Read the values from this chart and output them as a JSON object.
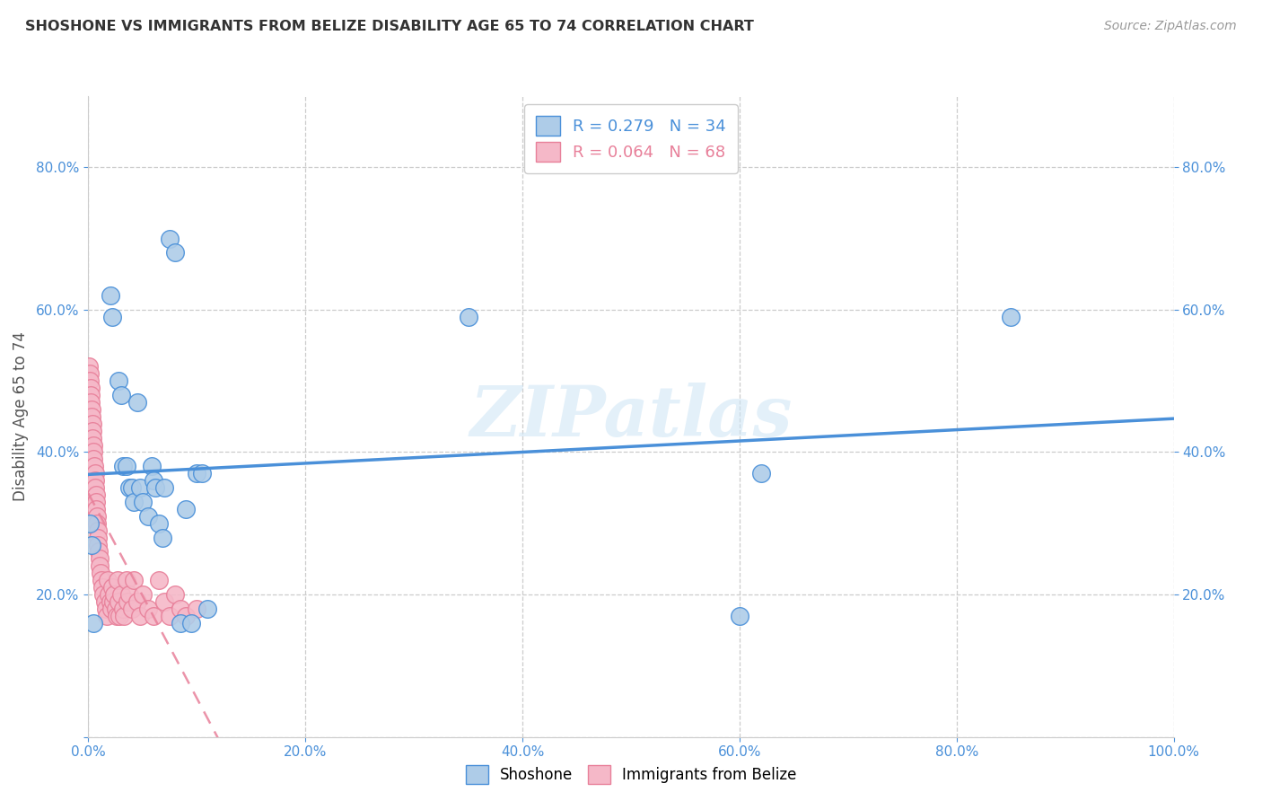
{
  "title": "SHOSHONE VS IMMIGRANTS FROM BELIZE DISABILITY AGE 65 TO 74 CORRELATION CHART",
  "source": "Source: ZipAtlas.com",
  "ylabel": "Disability Age 65 to 74",
  "watermark": "ZIPatlas",
  "shoshone_R": 0.279,
  "shoshone_N": 34,
  "belize_R": 0.064,
  "belize_N": 68,
  "shoshone_color": "#aecce8",
  "belize_color": "#f5b8c8",
  "shoshone_line_color": "#4a90d9",
  "belize_line_color": "#e8809a",
  "shoshone_x": [
    0.001,
    0.003,
    0.005,
    0.02,
    0.022,
    0.028,
    0.03,
    0.032,
    0.035,
    0.038,
    0.04,
    0.042,
    0.045,
    0.048,
    0.05,
    0.055,
    0.058,
    0.06,
    0.062,
    0.065,
    0.068,
    0.07,
    0.075,
    0.08,
    0.085,
    0.09,
    0.095,
    0.1,
    0.105,
    0.11,
    0.35,
    0.6,
    0.62,
    0.85
  ],
  "shoshone_y": [
    0.3,
    0.27,
    0.16,
    0.62,
    0.59,
    0.5,
    0.48,
    0.38,
    0.38,
    0.35,
    0.35,
    0.33,
    0.47,
    0.35,
    0.33,
    0.31,
    0.38,
    0.36,
    0.35,
    0.3,
    0.28,
    0.35,
    0.7,
    0.68,
    0.16,
    0.32,
    0.16,
    0.37,
    0.37,
    0.18,
    0.59,
    0.17,
    0.37,
    0.59
  ],
  "belize_x": [
    0.0005,
    0.001,
    0.0015,
    0.002,
    0.002,
    0.0025,
    0.003,
    0.003,
    0.0035,
    0.004,
    0.004,
    0.0045,
    0.005,
    0.005,
    0.0055,
    0.006,
    0.006,
    0.0065,
    0.007,
    0.007,
    0.0075,
    0.008,
    0.008,
    0.0085,
    0.009,
    0.009,
    0.0095,
    0.01,
    0.01,
    0.011,
    0.012,
    0.013,
    0.014,
    0.015,
    0.016,
    0.017,
    0.018,
    0.019,
    0.02,
    0.021,
    0.022,
    0.023,
    0.024,
    0.025,
    0.026,
    0.027,
    0.028,
    0.029,
    0.03,
    0.032,
    0.033,
    0.035,
    0.036,
    0.038,
    0.04,
    0.042,
    0.045,
    0.048,
    0.05,
    0.055,
    0.06,
    0.065,
    0.07,
    0.075,
    0.08,
    0.085,
    0.09,
    0.1
  ],
  "belize_y": [
    0.52,
    0.51,
    0.5,
    0.49,
    0.48,
    0.47,
    0.46,
    0.45,
    0.44,
    0.43,
    0.42,
    0.41,
    0.4,
    0.39,
    0.38,
    0.37,
    0.36,
    0.35,
    0.34,
    0.33,
    0.32,
    0.31,
    0.3,
    0.29,
    0.28,
    0.27,
    0.26,
    0.25,
    0.24,
    0.23,
    0.22,
    0.21,
    0.2,
    0.19,
    0.18,
    0.17,
    0.22,
    0.2,
    0.19,
    0.18,
    0.21,
    0.19,
    0.2,
    0.18,
    0.17,
    0.22,
    0.19,
    0.17,
    0.2,
    0.18,
    0.17,
    0.22,
    0.19,
    0.2,
    0.18,
    0.22,
    0.19,
    0.17,
    0.2,
    0.18,
    0.17,
    0.22,
    0.19,
    0.17,
    0.2,
    0.18,
    0.17,
    0.18
  ],
  "xlim": [
    0.0,
    1.0
  ],
  "ylim": [
    0.0,
    0.9
  ],
  "xtick_vals": [
    0.0,
    0.2,
    0.4,
    0.6,
    0.8,
    1.0
  ],
  "xtick_labels": [
    "0.0%",
    "20.0%",
    "40.0%",
    "60.0%",
    "80.0%",
    "100.0%"
  ],
  "ytick_vals": [
    0.0,
    0.2,
    0.4,
    0.6,
    0.8
  ],
  "ytick_labels": [
    "",
    "20.0%",
    "40.0%",
    "60.0%",
    "80.0%"
  ],
  "right_ytick_vals": [
    0.2,
    0.4,
    0.6,
    0.8
  ],
  "right_ytick_labels": [
    "20.0%",
    "40.0%",
    "60.0%",
    "80.0%"
  ],
  "background_color": "#ffffff",
  "grid_color": "#cccccc",
  "tick_color": "#4a90d9",
  "title_color": "#333333",
  "source_color": "#999999"
}
